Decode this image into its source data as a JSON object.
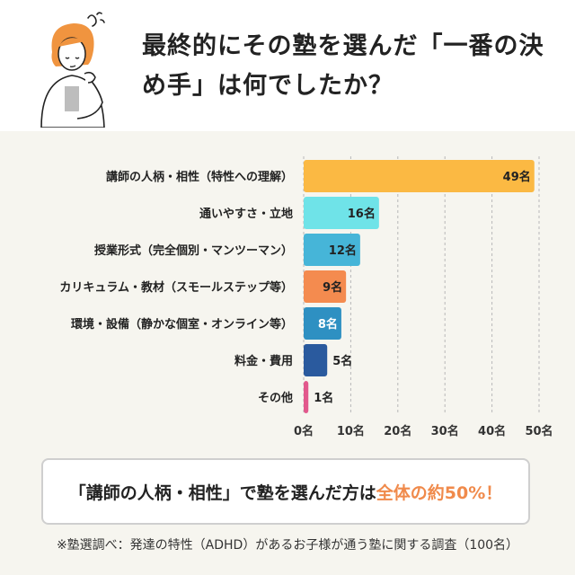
{
  "title": "最終的にその塾を選んだ「一番の決め手」は何でしたか？",
  "chart_data": {
    "type": "bar",
    "orientation": "horizontal",
    "categories": [
      "講師の人柄・相性（特性への理解）",
      "通いやすさ・立地",
      "授業形式（完全個別・マンツーマン）",
      "カリキュラム・教材（スモールステップ等）",
      "環境・設備（静かな個室・オンライン等）",
      "料金・費用",
      "その他"
    ],
    "values": [
      49,
      16,
      12,
      9,
      8,
      5,
      1
    ],
    "value_labels": [
      "49名",
      "16名",
      "12名",
      "9名",
      "8名",
      "5名",
      "1名"
    ],
    "colors": [
      "#fbb943",
      "#6fe3e8",
      "#46b5d8",
      "#f48b4f",
      "#2e90c2",
      "#2a5a9e",
      "#e2588c"
    ],
    "x_ticks": [
      0,
      10,
      20,
      30,
      40,
      50
    ],
    "x_tick_labels": [
      "0名",
      "10名",
      "20名",
      "30名",
      "40名",
      "50名"
    ],
    "xlim": [
      0,
      50
    ],
    "grid": true
  },
  "summary": {
    "text": "「講師の人柄・相性」で塾を選んだ方は",
    "highlight": "全体の約50%！"
  },
  "footnote": "※塾選調べ：発達の特性（ADHD）があるお子様が通う塾に関する調査（100名）"
}
